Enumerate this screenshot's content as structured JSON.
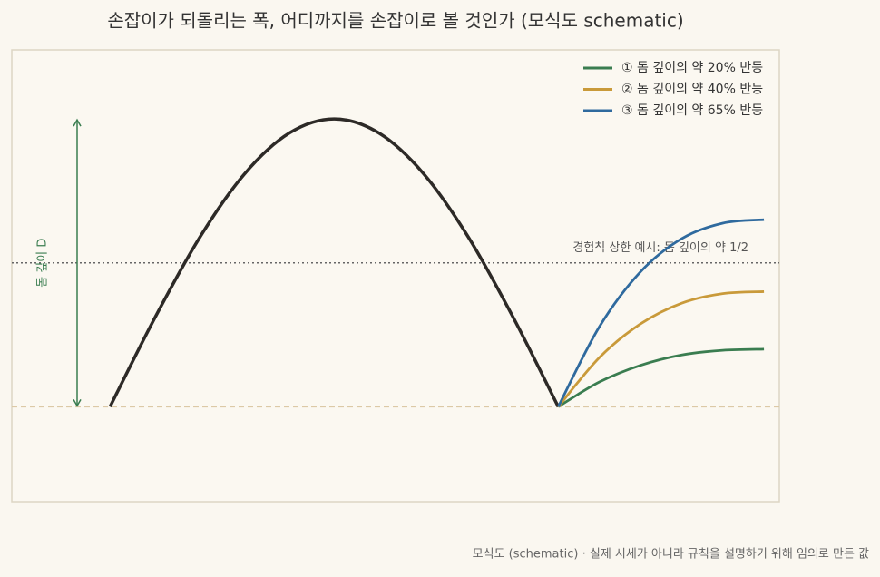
{
  "chart_data": {
    "type": "line",
    "title": "손잡이가 되돌리는 폭, 어디까지를 손잡이로 볼 것인가 (모식도 schematic)",
    "ylabel": "돔 깊이 D",
    "footnote": "모식도 (schematic) · 실제 시세가 아니라 규칙을 설명하기 위해 임의로 만든 값",
    "xlim": [
      0,
      100
    ],
    "ylim": [
      -0.33,
      1.24
    ],
    "cup": {
      "color": "#2d2a27",
      "x": [
        12.8,
        18.64,
        24.48,
        30.32,
        36.16,
        42,
        47.84,
        53.68,
        59.52,
        65.36,
        71.2
      ],
      "values": [
        0,
        0.309,
        0.588,
        0.809,
        0.951,
        1,
        0.951,
        0.809,
        0.588,
        0.309,
        0
      ]
    },
    "x": [
      71.2,
      76.56,
      81.92,
      87.28,
      92.64,
      98
    ],
    "series": [
      {
        "name": "① 돔 깊이의 약 20% 반등",
        "color": "#3a7d50",
        "values": [
          0,
          0.086,
          0.144,
          0.18,
          0.196,
          0.2
        ]
      },
      {
        "name": "② 돔 깊이의 약 40% 반등",
        "color": "#c99a3a",
        "values": [
          0,
          0.171,
          0.288,
          0.36,
          0.393,
          0.4
        ]
      },
      {
        "name": "③ 돔 깊이의 약 65% 반등",
        "color": "#2f6a9e",
        "values": [
          0,
          0.278,
          0.469,
          0.584,
          0.638,
          0.65
        ]
      }
    ],
    "baseline": {
      "value": 0,
      "color": "#dcc9a6"
    },
    "reference": {
      "value": 0.5,
      "label": "경험칙 상한 예시: 돔 깊이의 약 1/2",
      "color": "#666"
    },
    "legend": "upper right"
  }
}
